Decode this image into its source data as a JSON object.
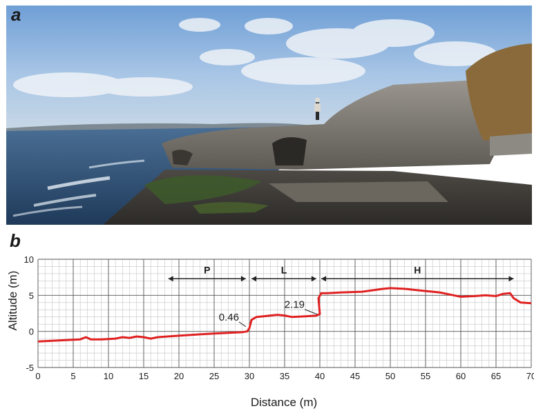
{
  "panels": {
    "a": "a",
    "b": "b"
  },
  "chart_data": {
    "type": "line",
    "xlabel": "Distance (m)",
    "ylabel": "Altitude (m)",
    "xlim": [
      0,
      70
    ],
    "ylim": [
      -5,
      10
    ],
    "xticks": [
      0,
      5,
      10,
      15,
      20,
      25,
      30,
      35,
      40,
      45,
      50,
      55,
      60,
      65,
      70
    ],
    "yticks": [
      -5,
      0,
      5,
      10
    ],
    "grid": true,
    "line_color": "#e02020",
    "series": [
      {
        "x": [
          0,
          2,
          4,
          6,
          6.8,
          7.5,
          9,
          11,
          12,
          13,
          14,
          15,
          16,
          17,
          20,
          23,
          25,
          27,
          29,
          29.7,
          30,
          30.3,
          31,
          32,
          33,
          34,
          35,
          36,
          38,
          39.5,
          40,
          39.8,
          40.2,
          41,
          43,
          46,
          49,
          50,
          52,
          55,
          57,
          59,
          60,
          62,
          63.5,
          65,
          66,
          67,
          67.5,
          68.5,
          70
        ],
        "y": [
          -1.4,
          -1.3,
          -1.2,
          -1.1,
          -0.8,
          -1.1,
          -1.1,
          -1.0,
          -0.8,
          -0.9,
          -0.7,
          -0.8,
          -1.0,
          -0.8,
          -0.6,
          -0.4,
          -0.3,
          -0.2,
          -0.1,
          0.0,
          0.46,
          1.6,
          2.0,
          2.1,
          2.2,
          2.3,
          2.2,
          2.0,
          2.1,
          2.19,
          2.4,
          4.6,
          5.3,
          5.3,
          5.4,
          5.5,
          5.9,
          6.0,
          5.9,
          5.6,
          5.4,
          5.0,
          4.8,
          4.9,
          5.0,
          4.9,
          5.2,
          5.3,
          4.6,
          4.0,
          3.9
        ]
      }
    ],
    "annotations": [
      {
        "text": "0.46",
        "x": 29.7,
        "y": 0.46
      },
      {
        "text": "2.19",
        "x": 39.8,
        "y": 2.19
      }
    ],
    "zones": [
      {
        "label": "P",
        "start": 18.5,
        "end": 29.5,
        "y": 7.3
      },
      {
        "label": "L",
        "start": 30.3,
        "end": 39.5,
        "y": 7.3
      },
      {
        "label": "H",
        "start": 40.2,
        "end": 67.5,
        "y": 7.3
      }
    ]
  }
}
